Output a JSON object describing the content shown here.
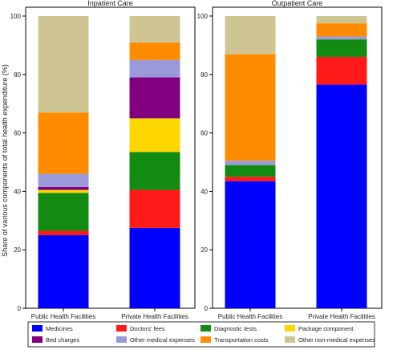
{
  "figure": {
    "ylabel": "Share of various components of total health expenditure (%)",
    "legend_placement": "bottom"
  },
  "colors": {
    "Medicines": "#0000FF",
    "Doctors' fees": "#FF1A1A",
    "Diagnostic tests": "#138B13",
    "Package component": "#FFD700",
    "Bed charges": "#800080",
    "Other medical expenses": "#9A9ADA",
    "Transportation costs": "#FF8C00",
    "Other non-medical expenses": "#CFC593"
  },
  "legend": [
    "Medicines",
    "Doctors' fees",
    "Diagnostic tests",
    "Package component",
    "Bed charges",
    "Other medical expenses",
    "Transportation costs",
    "Other non-medical expenses"
  ],
  "chart_data": [
    {
      "type": "bar",
      "stacked": true,
      "title": "Inpatient Care",
      "categories": [
        "Public Health Facilities",
        "Private Health Facilities"
      ],
      "ylim": [
        0,
        100
      ],
      "yticks": [
        0,
        20,
        40,
        60,
        80,
        100
      ],
      "grid": false,
      "series": [
        {
          "name": "Medicines",
          "values": [
            25.0,
            27.5
          ]
        },
        {
          "name": "Doctors' fees",
          "values": [
            1.5,
            13.0
          ]
        },
        {
          "name": "Diagnostic tests",
          "values": [
            13.0,
            13.0
          ]
        },
        {
          "name": "Package component",
          "values": [
            1.0,
            11.5
          ]
        },
        {
          "name": "Bed charges",
          "values": [
            1.0,
            14.0
          ]
        },
        {
          "name": "Other medical expenses",
          "values": [
            4.5,
            6.0
          ]
        },
        {
          "name": "Transportation costs",
          "values": [
            21.0,
            6.0
          ]
        },
        {
          "name": "Other non-medical expenses",
          "values": [
            33.0,
            9.0
          ]
        }
      ]
    },
    {
      "type": "bar",
      "stacked": true,
      "title": "Outpatient Care",
      "categories": [
        "Public Health Facilities",
        "Private Health Facilities"
      ],
      "ylim": [
        0,
        100
      ],
      "yticks": [
        0,
        20,
        40,
        60,
        80,
        100
      ],
      "grid": false,
      "series": [
        {
          "name": "Medicines",
          "values": [
            43.5,
            76.5
          ]
        },
        {
          "name": "Doctors' fees",
          "values": [
            1.5,
            9.5
          ]
        },
        {
          "name": "Diagnostic tests",
          "values": [
            4.0,
            6.0
          ]
        },
        {
          "name": "Package component",
          "values": [
            0.0,
            0.0
          ]
        },
        {
          "name": "Bed charges",
          "values": [
            0.0,
            0.0
          ]
        },
        {
          "name": "Other medical expenses",
          "values": [
            1.5,
            1.0
          ]
        },
        {
          "name": "Transportation costs",
          "values": [
            36.5,
            4.5
          ]
        },
        {
          "name": "Other non-medical expenses",
          "values": [
            13.0,
            2.5
          ]
        }
      ]
    }
  ]
}
